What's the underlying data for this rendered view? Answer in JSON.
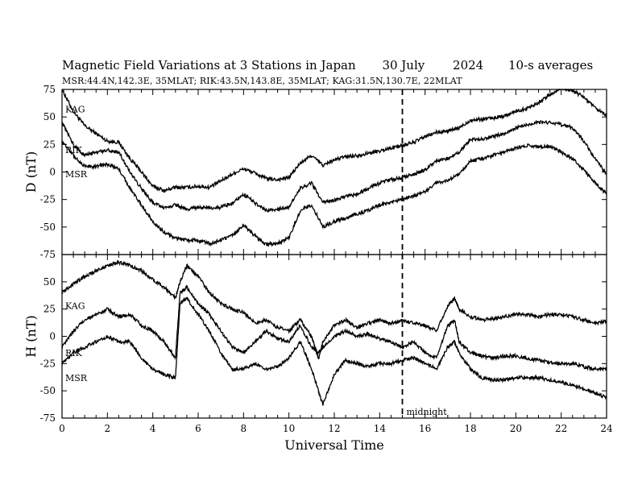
{
  "title": {
    "main": "Magnetic Field Variations at 3 Stations in Japan",
    "date": "30 July",
    "year": "2024",
    "resolution": "10-s averages"
  },
  "subtitle": "MSR:44.4N,142.3E, 35MLAT;  RIK:43.5N,143.8E, 35MLAT;  KAG:31.5N,130.7E, 22MLAT",
  "xlabel": "Universal Time",
  "midnight_label": "midnight",
  "chart_data": [
    {
      "type": "line",
      "panel": "D",
      "ylabel": "D (nT)",
      "ylim": [
        -75,
        75
      ],
      "yticks": [
        -75,
        -50,
        -25,
        0,
        25,
        50,
        75
      ],
      "xlim": [
        0,
        24
      ],
      "xticks": [
        0,
        2,
        4,
        6,
        8,
        10,
        12,
        14,
        16,
        18,
        20,
        22,
        24
      ],
      "x": [
        0,
        0.5,
        1,
        1.5,
        2,
        2.5,
        3,
        3.5,
        4,
        4.5,
        5,
        5.5,
        6,
        6.5,
        7,
        7.5,
        8,
        8.5,
        9,
        9.5,
        10,
        10.5,
        11,
        11.5,
        12,
        12.5,
        13,
        13.5,
        14,
        14.5,
        15,
        15.5,
        16,
        16.5,
        17,
        17.5,
        18,
        18.5,
        19,
        19.5,
        20,
        20.5,
        21,
        21.5,
        22,
        22.5,
        23,
        23.5,
        24
      ],
      "series": [
        {
          "name": "KAG",
          "label_y": 57,
          "values": [
            75,
            55,
            42,
            35,
            28,
            27,
            12,
            0,
            -13,
            -17,
            -14,
            -14,
            -13,
            -14,
            -8,
            -2,
            3,
            -1,
            -6,
            -7,
            -5,
            8,
            15,
            6,
            11,
            14,
            15,
            17,
            19,
            22,
            24,
            27,
            32,
            36,
            37,
            40,
            47,
            48,
            49,
            51,
            55,
            58,
            63,
            70,
            76,
            74,
            68,
            58,
            51
          ]
        },
        {
          "name": "RIK",
          "label_y": 20,
          "values": [
            45,
            25,
            15,
            18,
            20,
            18,
            0,
            -15,
            -28,
            -33,
            -30,
            -34,
            -32,
            -33,
            -32,
            -28,
            -20,
            -28,
            -35,
            -34,
            -32,
            -15,
            -10,
            -28,
            -26,
            -22,
            -20,
            -15,
            -10,
            -7,
            -5,
            -2,
            2,
            10,
            12,
            18,
            29,
            30,
            32,
            35,
            40,
            43,
            45,
            45,
            43,
            40,
            28,
            12,
            -2
          ]
        },
        {
          "name": "MSR",
          "label_y": -2,
          "values": [
            28,
            15,
            5,
            5,
            7,
            3,
            -15,
            -30,
            -45,
            -55,
            -60,
            -62,
            -62,
            -65,
            -62,
            -58,
            -48,
            -58,
            -66,
            -65,
            -60,
            -35,
            -30,
            -50,
            -45,
            -42,
            -38,
            -35,
            -30,
            -28,
            -25,
            -22,
            -18,
            -10,
            -8,
            -2,
            10,
            12,
            15,
            18,
            22,
            24,
            23,
            23,
            18,
            12,
            2,
            -10,
            -20
          ]
        }
      ]
    },
    {
      "type": "line",
      "panel": "H",
      "ylabel": "H (nT)",
      "ylim": [
        -75,
        75
      ],
      "yticks": [
        -75,
        -50,
        -25,
        0,
        25,
        50
      ],
      "xlim": [
        0,
        24
      ],
      "xticks": [
        0,
        2,
        4,
        6,
        8,
        10,
        12,
        14,
        16,
        18,
        20,
        22,
        24
      ],
      "x": [
        0,
        0.5,
        1,
        1.5,
        2,
        2.5,
        3,
        3.5,
        4,
        4.5,
        5,
        5.2,
        5.5,
        6,
        6.5,
        7,
        7.5,
        8,
        8.5,
        9,
        9.5,
        10,
        10.5,
        11,
        11.3,
        11.5,
        12,
        12.5,
        13,
        13.5,
        14,
        14.5,
        15,
        15.5,
        16,
        16.5,
        17,
        17.3,
        17.5,
        18,
        18.5,
        19,
        19.5,
        20,
        20.5,
        21,
        21.5,
        22,
        22.5,
        23,
        23.5,
        24
      ],
      "series": [
        {
          "name": "KAG",
          "label_y": 28,
          "values": [
            40,
            48,
            55,
            60,
            65,
            68,
            65,
            60,
            52,
            45,
            35,
            50,
            65,
            55,
            40,
            30,
            25,
            22,
            12,
            15,
            8,
            5,
            15,
            0,
            -20,
            -5,
            10,
            15,
            8,
            12,
            15,
            12,
            15,
            12,
            10,
            5,
            28,
            35,
            25,
            18,
            15,
            16,
            18,
            20,
            20,
            18,
            20,
            20,
            18,
            15,
            12,
            14
          ]
        },
        {
          "name": "RIK",
          "label_y": -15,
          "values": [
            -10,
            5,
            15,
            20,
            25,
            18,
            20,
            10,
            5,
            -5,
            -20,
            40,
            45,
            30,
            20,
            5,
            -10,
            -15,
            -5,
            5,
            -2,
            -5,
            10,
            -10,
            -15,
            -10,
            0,
            5,
            0,
            2,
            -2,
            -5,
            -10,
            -5,
            -15,
            -20,
            10,
            15,
            -5,
            -15,
            -18,
            -20,
            -18,
            -18,
            -20,
            -22,
            -24,
            -25,
            -25,
            -28,
            -30,
            -30
          ]
        },
        {
          "name": "MSR",
          "label_y": -38,
          "values": [
            -25,
            -15,
            -10,
            -5,
            0,
            -5,
            -5,
            -20,
            -30,
            -35,
            -38,
            30,
            35,
            20,
            5,
            -15,
            -30,
            -30,
            -25,
            -30,
            -28,
            -20,
            -5,
            -30,
            -50,
            -62,
            -35,
            -22,
            -25,
            -28,
            -25,
            -25,
            -22,
            -20,
            -25,
            -30,
            -10,
            -5,
            -15,
            -30,
            -38,
            -40,
            -40,
            -38,
            -38,
            -38,
            -40,
            -42,
            -45,
            -48,
            -52,
            -56
          ]
        }
      ]
    }
  ]
}
